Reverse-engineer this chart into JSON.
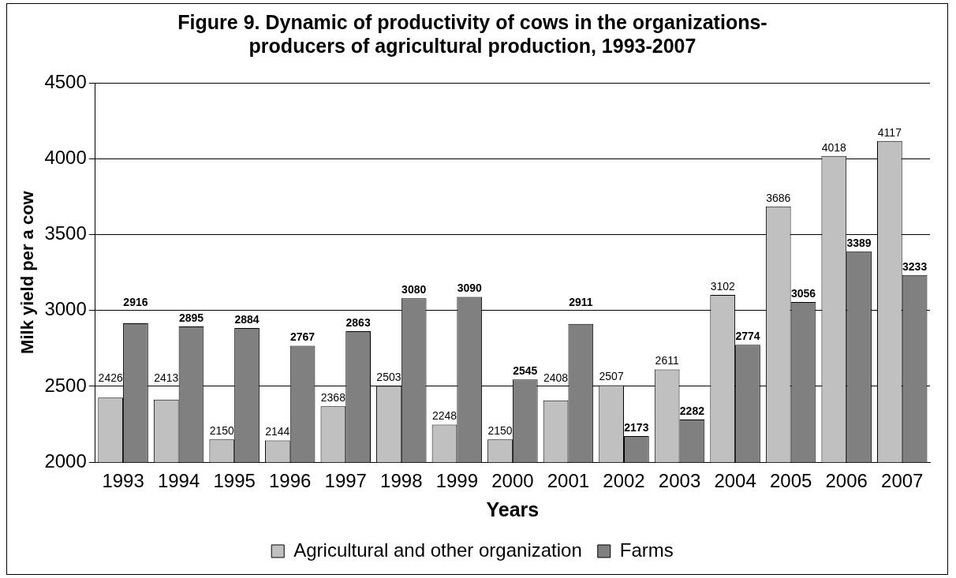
{
  "chart_data": {
    "type": "bar",
    "title": "Figure 9. Dynamic of productivity of cows in the organizations-producers of agricultural production, 1993-2007",
    "xlabel": "Years",
    "ylabel": "Milk yield per a cow",
    "categories": [
      "1993",
      "1994",
      "1995",
      "1996",
      "1997",
      "1998",
      "1999",
      "2000",
      "2001",
      "2002",
      "2003",
      "2004",
      "2005",
      "2006",
      "2007"
    ],
    "series": [
      {
        "name": "Agricultural and other organization",
        "color": "#c0c0c0",
        "values": [
          2426,
          2413,
          2150,
          2144,
          2368,
          2503,
          2248,
          2150,
          2408,
          2507,
          2611,
          3102,
          3686,
          4018,
          4117
        ]
      },
      {
        "name": "Farms",
        "color": "#808080",
        "values": [
          2916,
          2895,
          2884,
          2767,
          2863,
          3080,
          3090,
          2545,
          2911,
          2173,
          2282,
          2774,
          3056,
          3389,
          3233
        ]
      }
    ],
    "ylim": [
      2000,
      4500
    ],
    "yticks": [
      2000,
      2500,
      3000,
      3500,
      4000,
      4500
    ],
    "grid": "y",
    "legend": "bottom",
    "data_labels": true
  }
}
